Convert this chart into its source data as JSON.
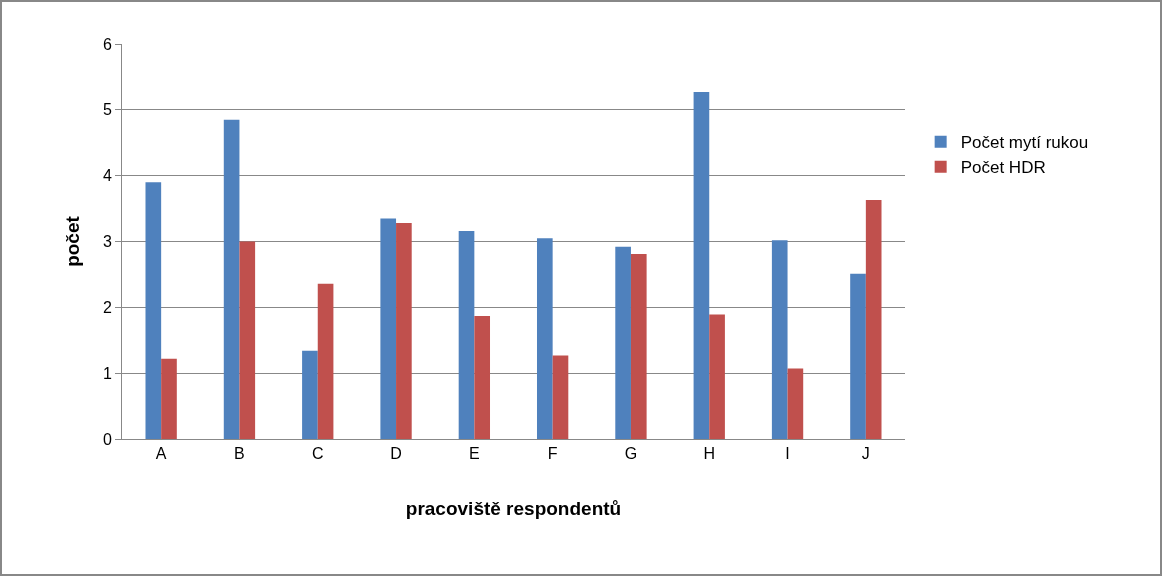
{
  "chart_data": {
    "type": "bar",
    "xlabel": "pracoviště respondentů",
    "ylabel": "počet",
    "categories": [
      "A",
      "B",
      "C",
      "D",
      "E",
      "F",
      "G",
      "H",
      "I",
      "J"
    ],
    "series": [
      {
        "name": "Počet mytí rukou",
        "color": "#4f81bd",
        "values": [
          3.9,
          4.85,
          1.34,
          3.35,
          3.16,
          3.05,
          2.92,
          5.27,
          3.02,
          2.51
        ]
      },
      {
        "name": "Počet HDR",
        "color": "#c0504d",
        "values": [
          1.22,
          3.0,
          2.36,
          3.28,
          1.87,
          1.27,
          2.81,
          1.89,
          1.07,
          3.63
        ]
      }
    ],
    "ylim": [
      0,
      6
    ],
    "yticks": [
      0,
      1,
      2,
      3,
      4,
      5,
      6
    ],
    "grid": "y",
    "legend": "right"
  }
}
